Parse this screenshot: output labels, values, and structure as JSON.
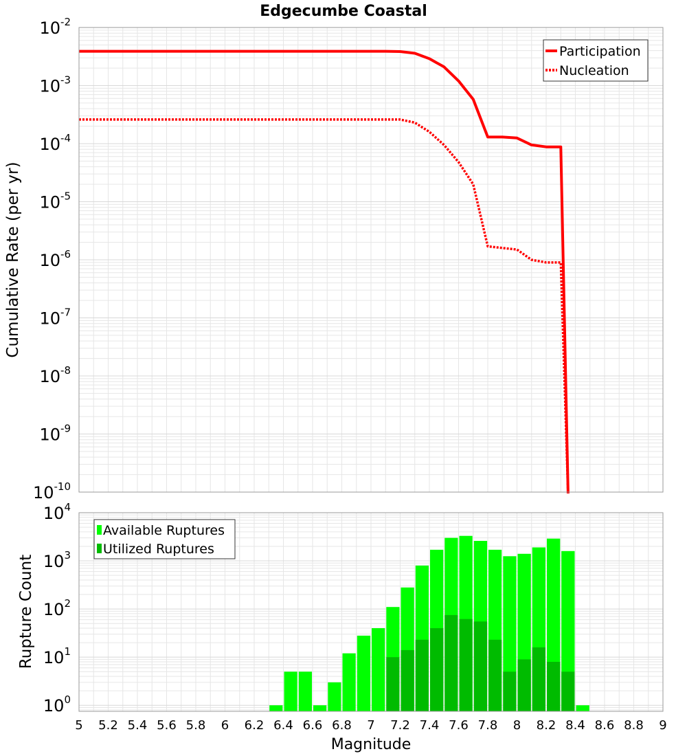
{
  "title": "Edgecumbe Coastal",
  "colors": {
    "rate_line": "#ff0000",
    "available": "#00ff00",
    "utilized": "#00bb00",
    "grid": "#e6e6e6",
    "axis": "#999999"
  },
  "chart_data": [
    {
      "type": "line",
      "title": "Edgecumbe Coastal",
      "xlabel": "",
      "ylabel": "Cumulative Rate (per yr)",
      "xlim": [
        5,
        9
      ],
      "ylim": [
        1e-10,
        0.01
      ],
      "yscale": "log",
      "grid": true,
      "legend_position": "top-right",
      "y_tick_exponents": [
        "-2",
        "-3",
        "-4",
        "-5",
        "-6",
        "-7",
        "-8",
        "-9",
        "-10"
      ],
      "series": [
        {
          "name": "Participation",
          "style": "solid",
          "x": [
            5.0,
            5.5,
            6.0,
            6.5,
            7.0,
            7.1,
            7.2,
            7.3,
            7.4,
            7.5,
            7.6,
            7.7,
            7.8,
            7.9,
            8.0,
            8.1,
            8.2,
            8.3,
            8.35
          ],
          "y": [
            0.0039,
            0.0039,
            0.0039,
            0.0039,
            0.0039,
            0.0039,
            0.00385,
            0.0036,
            0.0029,
            0.0021,
            0.0012,
            0.00058,
            0.00013,
            0.00013,
            0.000125,
            9.5e-05,
            8.8e-05,
            8.8e-05,
            1e-10
          ]
        },
        {
          "name": "Nucleation",
          "style": "dotted",
          "x": [
            5.0,
            5.5,
            6.0,
            6.5,
            7.0,
            7.1,
            7.2,
            7.3,
            7.4,
            7.5,
            7.6,
            7.7,
            7.8,
            7.9,
            8.0,
            8.1,
            8.2,
            8.3,
            8.35
          ],
          "y": [
            0.00026,
            0.00026,
            0.00026,
            0.00026,
            0.00026,
            0.00026,
            0.00026,
            0.00023,
            0.00016,
            9.5e-05,
            4.8e-05,
            2e-05,
            1.7e-06,
            1.6e-06,
            1.5e-06,
            1e-06,
            9e-07,
            9e-07,
            1e-10
          ]
        }
      ]
    },
    {
      "type": "bar",
      "xlabel": "Magnitude",
      "ylabel": "Rupture Count",
      "xlim": [
        5,
        9
      ],
      "ylim": [
        0.75,
        10000
      ],
      "yscale": "log",
      "grid": true,
      "legend_position": "top-left",
      "x_ticks": [
        "5",
        "5.2",
        "5.4",
        "5.6",
        "5.8",
        "6",
        "6.2",
        "6.4",
        "6.6",
        "6.8",
        "7",
        "7.2",
        "7.4",
        "7.6",
        "7.8",
        "8",
        "8.2",
        "8.4",
        "8.6",
        "8.8",
        "9"
      ],
      "y_tick_exponents": [
        "4",
        "3",
        "2",
        "1",
        "0"
      ],
      "bin_width": 0.1,
      "series": [
        {
          "name": "Available Ruptures",
          "x": [
            6.35,
            6.45,
            6.55,
            6.65,
            6.75,
            6.85,
            6.95,
            7.05,
            7.15,
            7.25,
            7.35,
            7.45,
            7.55,
            7.65,
            7.75,
            7.85,
            7.95,
            8.05,
            8.15,
            8.25,
            8.35,
            8.45
          ],
          "values": [
            1,
            5,
            5,
            1,
            3,
            12,
            28,
            40,
            110,
            280,
            800,
            1700,
            3000,
            3300,
            2600,
            1700,
            1250,
            1400,
            1900,
            2900,
            1600,
            1
          ]
        },
        {
          "name": "Utilized Ruptures",
          "x": [
            7.15,
            7.25,
            7.35,
            7.45,
            7.55,
            7.65,
            7.75,
            7.85,
            7.95,
            8.05,
            8.15,
            8.25,
            8.35
          ],
          "values": [
            10,
            14,
            23,
            40,
            75,
            62,
            55,
            23,
            5,
            9,
            16,
            8,
            5
          ]
        }
      ]
    }
  ]
}
